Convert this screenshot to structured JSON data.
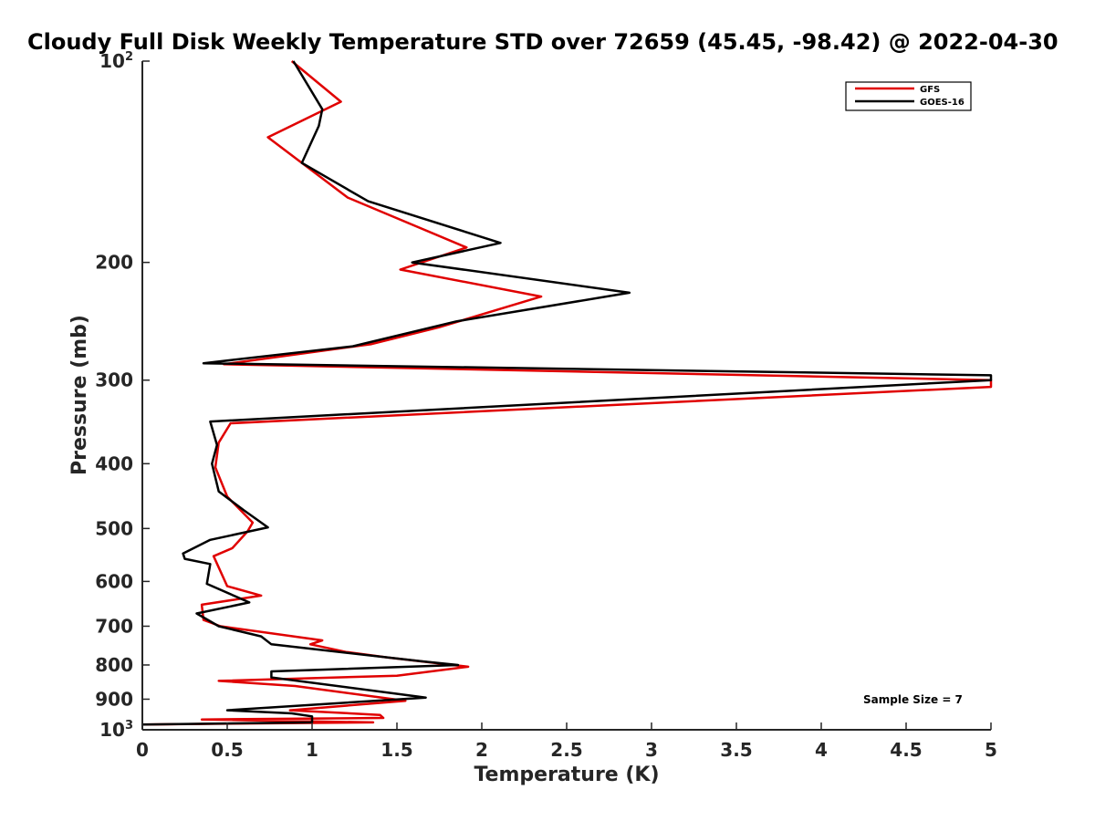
{
  "chart_data": {
    "type": "line",
    "title": "Cloudy Full Disk Weekly Temperature STD over 72659 (45.45, -98.42) @ 2022-04-30",
    "xlabel": "Temperature (K)",
    "ylabel": "Pressure (mb)",
    "xlim": [
      0,
      5
    ],
    "ylim": [
      1000,
      100
    ],
    "y_scale": "log",
    "y_reversed": true,
    "xticks": [
      "0",
      "0.5",
      "1",
      "1.5",
      "2",
      "2.5",
      "3",
      "3.5",
      "4",
      "4.5",
      "5"
    ],
    "yticks": [
      {
        "value": 100,
        "base": "10",
        "exp": "2"
      },
      {
        "value": 200,
        "label": "200"
      },
      {
        "value": 300,
        "label": "300"
      },
      {
        "value": 400,
        "label": "400"
      },
      {
        "value": 500,
        "label": "500"
      },
      {
        "value": 600,
        "label": "600"
      },
      {
        "value": 700,
        "label": "700"
      },
      {
        "value": 800,
        "label": "800"
      },
      {
        "value": 900,
        "label": "900"
      },
      {
        "value": 1000,
        "base": "10",
        "exp": "3"
      }
    ],
    "legend_position": "top-right",
    "annotation": "Sample Size = 7",
    "series": [
      {
        "name": "GFS",
        "color": "#e00000",
        "points": [
          [
            0.88,
            100
          ],
          [
            1.17,
            115
          ],
          [
            0.74,
            130
          ],
          [
            1.21,
            160
          ],
          [
            1.91,
            190
          ],
          [
            1.52,
            205
          ],
          [
            2.35,
            225
          ],
          [
            1.75,
            250
          ],
          [
            1.35,
            265
          ],
          [
            0.48,
            284
          ],
          [
            5.0,
            300
          ],
          [
            5.0,
            307
          ],
          [
            0.52,
            348
          ],
          [
            0.45,
            372
          ],
          [
            0.43,
            405
          ],
          [
            0.5,
            448
          ],
          [
            0.65,
            490
          ],
          [
            0.62,
            505
          ],
          [
            0.53,
            535
          ],
          [
            0.42,
            550
          ],
          [
            0.5,
            610
          ],
          [
            0.7,
            630
          ],
          [
            0.35,
            650
          ],
          [
            0.36,
            685
          ],
          [
            0.46,
            700
          ],
          [
            1.06,
            735
          ],
          [
            0.99,
            745
          ],
          [
            1.2,
            765
          ],
          [
            1.45,
            780
          ],
          [
            1.92,
            805
          ],
          [
            1.5,
            830
          ],
          [
            0.45,
            845
          ],
          [
            0.9,
            860
          ],
          [
            1.55,
            905
          ],
          [
            0.87,
            935
          ],
          [
            1.4,
            950
          ],
          [
            1.42,
            960
          ],
          [
            0.35,
            965
          ],
          [
            1.36,
            975
          ],
          [
            0.0,
            982
          ]
        ]
      },
      {
        "name": "GOES-16",
        "color": "#000000",
        "points": [
          [
            0.89,
            100
          ],
          [
            1.06,
            118
          ],
          [
            1.04,
            125
          ],
          [
            0.94,
            142
          ],
          [
            1.33,
            162
          ],
          [
            2.11,
            187
          ],
          [
            1.59,
            200
          ],
          [
            2.87,
            222
          ],
          [
            1.85,
            245
          ],
          [
            1.24,
            267
          ],
          [
            0.36,
            283
          ],
          [
            5.0,
            295
          ],
          [
            5.0,
            300
          ],
          [
            0.4,
            346
          ],
          [
            0.44,
            375
          ],
          [
            0.41,
            400
          ],
          [
            0.45,
            440
          ],
          [
            0.6,
            470
          ],
          [
            0.74,
            498
          ],
          [
            0.4,
            520
          ],
          [
            0.24,
            545
          ],
          [
            0.25,
            555
          ],
          [
            0.4,
            565
          ],
          [
            0.38,
            605
          ],
          [
            0.63,
            645
          ],
          [
            0.32,
            670
          ],
          [
            0.45,
            700
          ],
          [
            0.7,
            725
          ],
          [
            0.76,
            745
          ],
          [
            1.65,
            790
          ],
          [
            1.86,
            800
          ],
          [
            0.76,
            818
          ],
          [
            0.76,
            835
          ],
          [
            1.67,
            895
          ],
          [
            0.5,
            935
          ],
          [
            0.88,
            945
          ],
          [
            1.0,
            955
          ],
          [
            1.0,
            975
          ],
          [
            0.0,
            982
          ]
        ]
      }
    ]
  }
}
